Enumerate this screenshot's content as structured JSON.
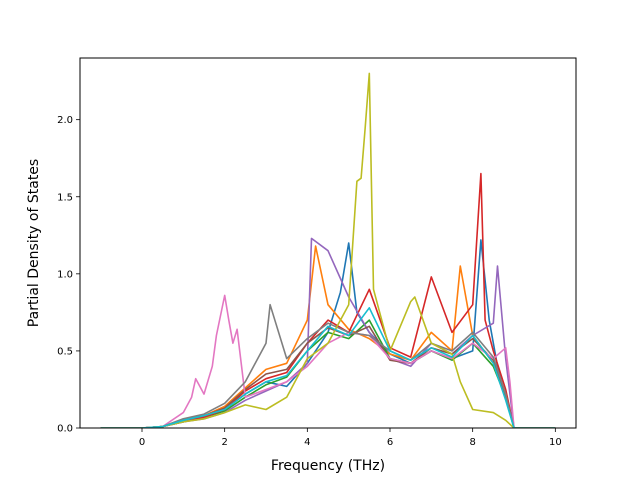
{
  "chart_data": {
    "type": "line",
    "xlabel": "Frequency (THz)",
    "ylabel": "Partial Density of States",
    "xlim": [
      -1.5,
      10.5
    ],
    "ylim": [
      0.0,
      2.4
    ],
    "xticks": [
      0,
      2,
      4,
      6,
      8,
      10
    ],
    "yticks": [
      0.0,
      0.5,
      1.0,
      1.5,
      2.0
    ],
    "xtick_labels": [
      "0",
      "2",
      "4",
      "6",
      "8",
      "10"
    ],
    "ytick_labels": [
      "0.0",
      "0.5",
      "1.0",
      "1.5",
      "2.0"
    ],
    "grid": false,
    "legend": "none",
    "series": [
      {
        "color": "#1f77b4",
        "x": [
          -1,
          0,
          0.5,
          1,
          1.5,
          2,
          2.5,
          3,
          3.5,
          4,
          4.5,
          4.8,
          5,
          5.2,
          5.5,
          6,
          6.5,
          7,
          7.5,
          8,
          8.2,
          8.4,
          8.6,
          8.8,
          9,
          10
        ],
        "y": [
          0,
          0,
          0.01,
          0.04,
          0.07,
          0.12,
          0.22,
          0.3,
          0.27,
          0.42,
          0.62,
          0.88,
          1.2,
          0.75,
          0.62,
          0.48,
          0.42,
          0.5,
          0.45,
          0.5,
          1.22,
          0.7,
          0.4,
          0.2,
          0,
          0
        ]
      },
      {
        "color": "#ff7f0e",
        "x": [
          -1,
          0,
          0.5,
          1,
          1.5,
          2,
          2.5,
          3,
          3.5,
          4,
          4.2,
          4.5,
          5,
          5.5,
          6,
          6.5,
          7,
          7.5,
          7.7,
          8,
          8.5,
          8.8,
          9,
          10
        ],
        "y": [
          0,
          0,
          0.01,
          0.05,
          0.08,
          0.14,
          0.26,
          0.38,
          0.42,
          0.7,
          1.18,
          0.8,
          0.64,
          0.58,
          0.48,
          0.44,
          0.62,
          0.5,
          1.05,
          0.6,
          0.42,
          0.22,
          0,
          0
        ]
      },
      {
        "color": "#2ca02c",
        "x": [
          -1,
          0,
          0.5,
          1,
          1.5,
          2,
          2.5,
          3,
          3.5,
          4,
          4.5,
          5,
          5.5,
          6,
          6.5,
          7,
          7.5,
          8,
          8.5,
          8.8,
          9,
          10
        ],
        "y": [
          0,
          0,
          0.01,
          0.04,
          0.07,
          0.11,
          0.2,
          0.28,
          0.33,
          0.5,
          0.62,
          0.58,
          0.7,
          0.45,
          0.42,
          0.5,
          0.44,
          0.55,
          0.4,
          0.2,
          0,
          0
        ]
      },
      {
        "color": "#d62728",
        "x": [
          -1,
          0,
          0.5,
          1,
          1.5,
          2,
          2.5,
          3,
          3.5,
          4,
          4.5,
          5,
          5.5,
          6,
          6.5,
          7,
          7.5,
          8,
          8.2,
          8.3,
          8.5,
          8.8,
          9,
          10
        ],
        "y": [
          0,
          0,
          0.01,
          0.04,
          0.07,
          0.12,
          0.24,
          0.32,
          0.36,
          0.55,
          0.7,
          0.62,
          0.9,
          0.52,
          0.46,
          0.98,
          0.62,
          0.8,
          1.65,
          0.7,
          0.5,
          0.25,
          0,
          0
        ]
      },
      {
        "color": "#9467bd",
        "x": [
          -1,
          0,
          0.5,
          1,
          1.5,
          2,
          2.5,
          3,
          3.5,
          4,
          4.1,
          4.5,
          5,
          5.5,
          6,
          6.5,
          7,
          7.5,
          8,
          8.5,
          8.6,
          8.8,
          9,
          10
        ],
        "y": [
          0,
          0,
          0.01,
          0.04,
          0.06,
          0.1,
          0.18,
          0.24,
          0.3,
          0.42,
          1.23,
          1.15,
          0.85,
          0.62,
          0.45,
          0.4,
          0.55,
          0.48,
          0.6,
          0.68,
          1.05,
          0.45,
          0,
          0
        ]
      },
      {
        "color": "#8c564b",
        "x": [
          -1,
          0,
          0.5,
          1,
          1.5,
          2,
          2.5,
          3,
          3.5,
          4,
          4.5,
          5,
          5.5,
          6,
          6.5,
          7,
          7.5,
          8,
          8.5,
          8.8,
          9,
          10
        ],
        "y": [
          0,
          0,
          0.01,
          0.05,
          0.08,
          0.13,
          0.25,
          0.35,
          0.38,
          0.55,
          0.65,
          0.6,
          0.66,
          0.44,
          0.42,
          0.52,
          0.48,
          0.58,
          0.44,
          0.2,
          0,
          0
        ]
      },
      {
        "color": "#e377c2",
        "x": [
          -1,
          0,
          0.5,
          1,
          1.2,
          1.3,
          1.5,
          1.7,
          1.8,
          2,
          2.1,
          2.2,
          2.3,
          2.5,
          3,
          3.5,
          4,
          4.5,
          5,
          5.5,
          6,
          6.5,
          7,
          7.5,
          8,
          8.5,
          8.8,
          8.9,
          9,
          10
        ],
        "y": [
          0,
          0,
          0.01,
          0.1,
          0.2,
          0.32,
          0.22,
          0.4,
          0.6,
          0.86,
          0.7,
          0.55,
          0.64,
          0.2,
          0.25,
          0.3,
          0.4,
          0.55,
          0.62,
          0.6,
          0.45,
          0.42,
          0.5,
          0.45,
          0.55,
          0.45,
          0.52,
          0.3,
          0,
          0
        ]
      },
      {
        "color": "#7f7f7f",
        "x": [
          -1,
          0,
          0.5,
          1,
          1.5,
          2,
          2.5,
          3,
          3.1,
          3.5,
          4,
          4.5,
          5,
          5.5,
          6,
          6.5,
          7,
          7.5,
          8,
          8.5,
          8.8,
          9,
          10
        ],
        "y": [
          0,
          0,
          0.01,
          0.06,
          0.09,
          0.16,
          0.3,
          0.55,
          0.8,
          0.45,
          0.58,
          0.68,
          0.62,
          0.6,
          0.5,
          0.44,
          0.55,
          0.5,
          0.62,
          0.46,
          0.22,
          0,
          0
        ]
      },
      {
        "color": "#bcbd22",
        "x": [
          -1,
          0,
          0.5,
          1,
          1.5,
          2,
          2.5,
          3,
          3.5,
          4,
          4.5,
          5,
          5.2,
          5.3,
          5.4,
          5.5,
          5.6,
          6,
          6.5,
          6.6,
          7,
          7.5,
          7.7,
          8,
          8.5,
          8.8,
          9,
          10
        ],
        "y": [
          0,
          0,
          0.01,
          0.04,
          0.06,
          0.1,
          0.15,
          0.12,
          0.2,
          0.45,
          0.55,
          0.8,
          1.6,
          1.62,
          1.95,
          2.3,
          0.9,
          0.5,
          0.82,
          0.85,
          0.55,
          0.48,
          0.3,
          0.12,
          0.1,
          0.05,
          0,
          0
        ]
      },
      {
        "color": "#17becf",
        "x": [
          -1,
          0,
          0.5,
          1,
          1.5,
          2,
          2.5,
          3,
          3.5,
          4,
          4.5,
          5,
          5.5,
          6,
          6.5,
          7,
          7.5,
          8,
          8.5,
          8.8,
          9,
          10
        ],
        "y": [
          0,
          0,
          0.01,
          0.05,
          0.08,
          0.12,
          0.22,
          0.3,
          0.34,
          0.5,
          0.66,
          0.6,
          0.78,
          0.5,
          0.44,
          0.52,
          0.46,
          0.6,
          0.42,
          0.18,
          0,
          0
        ]
      }
    ]
  }
}
